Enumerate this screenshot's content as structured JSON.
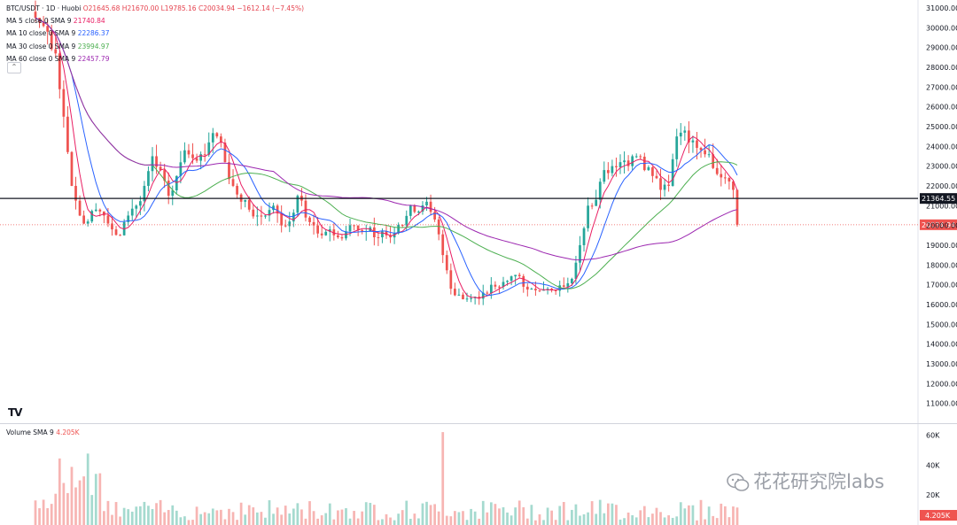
{
  "header": {
    "symbol": "BTC/USDT · 1D · Huobi",
    "ohlc": "O21645.68  H21670.00  L19785.16  C20034.94  −1612.14 (−7.45%)"
  },
  "indicators": [
    {
      "label": "MA 5 close 0 SMA 9",
      "value": "21740.84",
      "color": "#e91e63"
    },
    {
      "label": "MA 10 close 0 SMA 9",
      "value": "22286.37",
      "color": "#2962ff"
    },
    {
      "label": "MA 30 close 0 SMA 9",
      "value": "23994.97",
      "color": "#4caf50"
    },
    {
      "label": "MA 60 close 0 SMA 9",
      "value": "22457.79",
      "color": "#9c27b0"
    }
  ],
  "volume_legend": {
    "label": "Volume SMA 9",
    "value": "4.205K"
  },
  "collapse_icon": "chevron-up-icon",
  "logo_text": "TV",
  "watermark": "花花研究院labs",
  "colors": {
    "up": "#26a69a",
    "down": "#ef5350",
    "up_vol": "#a5dacf",
    "down_vol": "#f7b5b3",
    "hline": "#131722",
    "price_line": "#ef5350"
  },
  "chart_data": {
    "type": "candlestick",
    "price_axis": {
      "ticks": [
        11000,
        12000,
        13000,
        14000,
        15000,
        16000,
        17000,
        18000,
        19000,
        20000,
        21000,
        22000,
        23000,
        24000,
        25000,
        26000,
        27000,
        28000,
        29000,
        30000,
        31000
      ],
      "range": [
        10000,
        31400
      ]
    },
    "volume_axis": {
      "ticks": [
        20000,
        40000,
        60000
      ],
      "tick_labels": [
        "20K",
        "40K",
        "60K"
      ],
      "range": [
        0,
        65000
      ]
    },
    "horizontal_line": {
      "value": 21364.55,
      "label": "21364.55"
    },
    "last_price": {
      "value": 20034.94,
      "label": "20034.94"
    },
    "last_volume_label": "4.205K",
    "key_closes": [
      [
        0,
        30500
      ],
      [
        3,
        29800
      ],
      [
        5,
        28700
      ],
      [
        7,
        25500
      ],
      [
        9,
        22000
      ],
      [
        11,
        20500
      ],
      [
        13,
        20200
      ],
      [
        15,
        20800
      ],
      [
        17,
        20500
      ],
      [
        19,
        19800
      ],
      [
        21,
        19500
      ],
      [
        23,
        20500
      ],
      [
        25,
        21000
      ],
      [
        27,
        22000
      ],
      [
        29,
        23500
      ],
      [
        31,
        22800
      ],
      [
        33,
        21500
      ],
      [
        35,
        22500
      ],
      [
        37,
        23800
      ],
      [
        39,
        23400
      ],
      [
        41,
        23600
      ],
      [
        43,
        24200
      ],
      [
        45,
        24500
      ],
      [
        47,
        23200
      ],
      [
        49,
        22000
      ],
      [
        51,
        21200
      ],
      [
        53,
        20800
      ],
      [
        55,
        20500
      ],
      [
        57,
        20500
      ],
      [
        59,
        21000
      ],
      [
        61,
        20000
      ],
      [
        63,
        20200
      ],
      [
        65,
        21500
      ],
      [
        67,
        20400
      ],
      [
        69,
        20000
      ],
      [
        71,
        19500
      ],
      [
        73,
        19800
      ],
      [
        75,
        19400
      ],
      [
        77,
        19700
      ],
      [
        79,
        20000
      ],
      [
        81,
        19700
      ],
      [
        83,
        19900
      ],
      [
        85,
        19400
      ],
      [
        87,
        19500
      ],
      [
        89,
        19600
      ],
      [
        91,
        20000
      ],
      [
        93,
        21000
      ],
      [
        95,
        20700
      ],
      [
        97,
        21200
      ],
      [
        99,
        20300
      ],
      [
        101,
        18500
      ],
      [
        103,
        16800
      ],
      [
        105,
        16500
      ],
      [
        107,
        16300
      ],
      [
        109,
        16400
      ],
      [
        111,
        16600
      ],
      [
        113,
        17000
      ],
      [
        115,
        16900
      ],
      [
        117,
        17200
      ],
      [
        119,
        17500
      ],
      [
        121,
        16900
      ],
      [
        123,
        16800
      ],
      [
        125,
        16700
      ],
      [
        127,
        16800
      ],
      [
        129,
        16700
      ],
      [
        131,
        16900
      ],
      [
        133,
        17300
      ],
      [
        135,
        19000
      ],
      [
        137,
        21000
      ],
      [
        139,
        21300
      ],
      [
        141,
        22800
      ],
      [
        143,
        23000
      ],
      [
        145,
        23200
      ],
      [
        147,
        23000
      ],
      [
        149,
        23500
      ],
      [
        151,
        22800
      ],
      [
        153,
        22500
      ],
      [
        155,
        21800
      ],
      [
        157,
        22000
      ],
      [
        159,
        24500
      ],
      [
        161,
        24800
      ],
      [
        163,
        24300
      ],
      [
        165,
        23800
      ],
      [
        167,
        23600
      ],
      [
        169,
        22600
      ],
      [
        171,
        22400
      ],
      [
        173,
        21800
      ],
      [
        174,
        20034.94
      ]
    ],
    "ma5_final": 21740.84,
    "ma10_final": 22286.37,
    "ma30_final": 23994.97,
    "ma60_final": 22457.79
  }
}
